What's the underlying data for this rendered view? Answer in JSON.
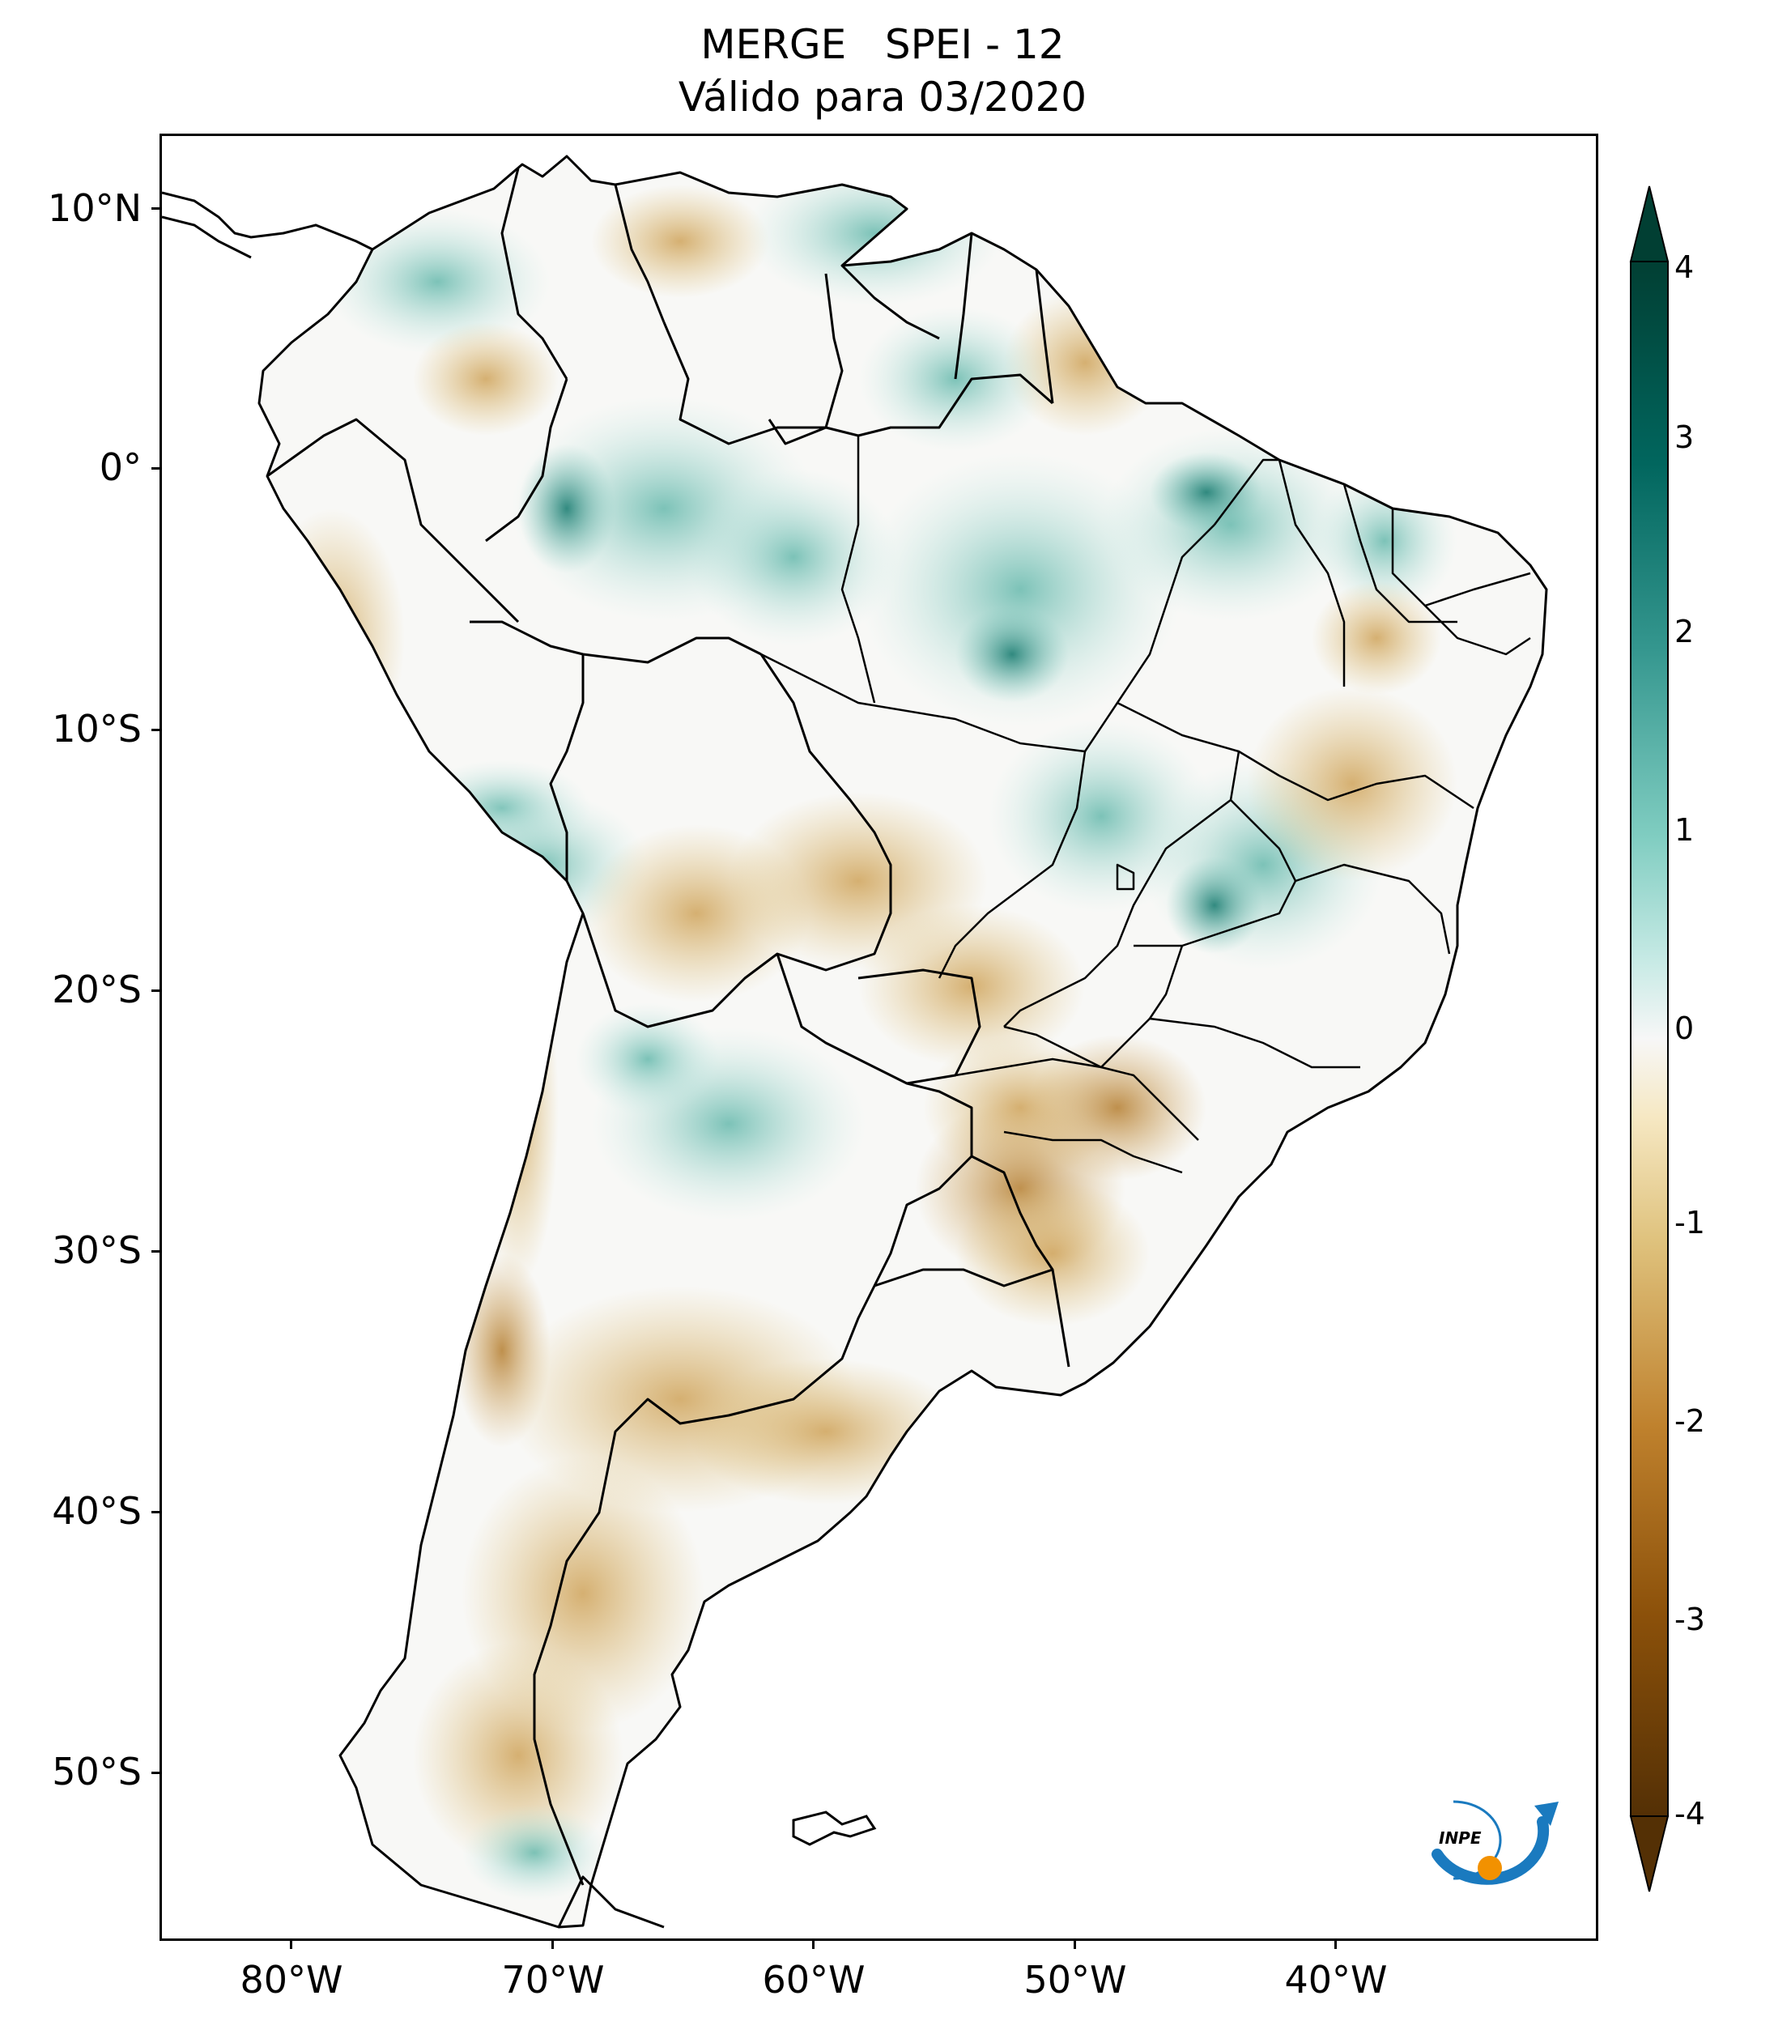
{
  "title": {
    "line1": "MERGE   SPEI - 12",
    "line2": "Válido para 03/2020"
  },
  "axes": {
    "latitude_labels": [
      "10°N",
      "0°",
      "10°S",
      "20°S",
      "30°S",
      "40°S",
      "50°S"
    ],
    "latitude_values": [
      10,
      0,
      -10,
      -20,
      -30,
      -40,
      -50
    ],
    "longitude_labels": [
      "80°W",
      "70°W",
      "60°W",
      "50°W",
      "40°W"
    ],
    "longitude_values": [
      -80,
      -70,
      -60,
      -50,
      -40
    ],
    "lon_range": [
      -85,
      -30
    ],
    "lat_range": [
      -56,
      13
    ]
  },
  "colorbar": {
    "tick_labels": [
      "4",
      "3",
      "2",
      "1",
      "0",
      "-1",
      "-2",
      "-3",
      "-4"
    ],
    "tick_values": [
      4,
      3,
      2,
      1,
      0,
      -1,
      -2,
      -3,
      -4
    ],
    "range": [
      -4,
      4
    ],
    "extend": "both",
    "colors": {
      "wet_max": "#013f33",
      "wet_mid": "#35978f",
      "wet_low": "#c7eae5",
      "neutral": "#f5f5f5",
      "dry_low": "#f6e8c3",
      "dry_mid": "#dfc27d",
      "dry_high": "#bf812d",
      "dry_max": "#543005"
    }
  },
  "logo": {
    "text": "INPE",
    "colors": {
      "arc": "#1a7abf",
      "dot": "#f29100"
    }
  }
}
